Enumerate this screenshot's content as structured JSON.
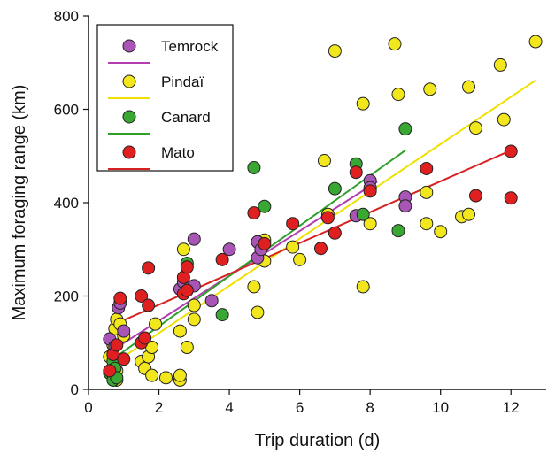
{
  "chart_data": {
    "type": "scatter",
    "xlabel": "Trip duration (d)",
    "ylabel": "Maximum foraging range (km)",
    "xlim": [
      0,
      13
    ],
    "ylim": [
      0,
      800
    ],
    "xticks": [
      0,
      2,
      4,
      6,
      8,
      10,
      12
    ],
    "yticks": [
      0,
      200,
      400,
      600,
      800
    ],
    "legend_position": "top-left",
    "grid": false,
    "series": [
      {
        "name": "Temrock",
        "color": "#a855b5",
        "line_color": "#b23cb0",
        "fit": [
          [
            0.6,
            80
          ],
          [
            8.2,
            445
          ]
        ],
        "points": [
          [
            0.6,
            108
          ],
          [
            0.75,
            92
          ],
          [
            0.85,
            175
          ],
          [
            0.9,
            185
          ],
          [
            1.0,
            125
          ],
          [
            0.7,
            40
          ],
          [
            2.6,
            215
          ],
          [
            2.7,
            230
          ],
          [
            3.0,
            322
          ],
          [
            3.0,
            222
          ],
          [
            3.5,
            190
          ],
          [
            4.0,
            300
          ],
          [
            4.8,
            316
          ],
          [
            4.8,
            282
          ],
          [
            4.9,
            300
          ],
          [
            7.6,
            372
          ],
          [
            8.0,
            447
          ],
          [
            8.0,
            432
          ],
          [
            9.0,
            412
          ],
          [
            9.0,
            393
          ]
        ]
      },
      {
        "name": "Pindaï",
        "color": "#f2e61c",
        "line_color": "#f0e000",
        "fit": [
          [
            0.8,
            60
          ],
          [
            12.7,
            662
          ]
        ],
        "points": [
          [
            0.6,
            70
          ],
          [
            0.7,
            95
          ],
          [
            0.75,
            130
          ],
          [
            0.8,
            150
          ],
          [
            0.9,
            140
          ],
          [
            1.0,
            115
          ],
          [
            0.8,
            40
          ],
          [
            0.8,
            20
          ],
          [
            1.5,
            60
          ],
          [
            1.6,
            45
          ],
          [
            1.7,
            70
          ],
          [
            1.8,
            30
          ],
          [
            1.8,
            90
          ],
          [
            1.9,
            140
          ],
          [
            2.2,
            25
          ],
          [
            2.6,
            20
          ],
          [
            2.6,
            30
          ],
          [
            2.6,
            125
          ],
          [
            2.7,
            300
          ],
          [
            2.7,
            220
          ],
          [
            2.8,
            90
          ],
          [
            3.0,
            150
          ],
          [
            3.0,
            180
          ],
          [
            4.7,
            220
          ],
          [
            4.8,
            165
          ],
          [
            5.0,
            320
          ],
          [
            5.0,
            275
          ],
          [
            5.8,
            305
          ],
          [
            6.0,
            278
          ],
          [
            6.7,
            490
          ],
          [
            6.8,
            375
          ],
          [
            7.0,
            725
          ],
          [
            7.8,
            612
          ],
          [
            7.8,
            220
          ],
          [
            8.0,
            355
          ],
          [
            8.0,
            430
          ],
          [
            8.7,
            740
          ],
          [
            8.8,
            632
          ],
          [
            9.6,
            355
          ],
          [
            9.7,
            643
          ],
          [
            10.0,
            338
          ],
          [
            10.6,
            370
          ],
          [
            10.8,
            375
          ],
          [
            10.8,
            648
          ],
          [
            11.0,
            560
          ],
          [
            11.7,
            695
          ],
          [
            11.8,
            578
          ],
          [
            12.7,
            745
          ],
          [
            9.6,
            422
          ]
        ]
      },
      {
        "name": "Canard",
        "color": "#38a832",
        "line_color": "#2ea02a",
        "fit": [
          [
            0.6,
            60
          ],
          [
            9.0,
            512
          ]
        ],
        "points": [
          [
            0.6,
            35
          ],
          [
            0.7,
            60
          ],
          [
            0.7,
            20
          ],
          [
            0.75,
            45
          ],
          [
            0.8,
            25
          ],
          [
            2.8,
            270
          ],
          [
            3.8,
            160
          ],
          [
            4.7,
            475
          ],
          [
            5.0,
            392
          ],
          [
            7.0,
            430
          ],
          [
            7.6,
            483
          ],
          [
            7.8,
            375
          ],
          [
            8.8,
            340
          ],
          [
            9.0,
            558
          ]
        ]
      },
      {
        "name": "Mato",
        "color": "#e02020",
        "line_color": "#d82222",
        "fit": [
          [
            0.6,
            135
          ],
          [
            12.0,
            512
          ]
        ],
        "points": [
          [
            0.6,
            40
          ],
          [
            0.7,
            75
          ],
          [
            0.8,
            95
          ],
          [
            0.9,
            195
          ],
          [
            1.0,
            65
          ],
          [
            1.5,
            200
          ],
          [
            1.5,
            100
          ],
          [
            1.6,
            110
          ],
          [
            1.7,
            260
          ],
          [
            1.7,
            180
          ],
          [
            2.7,
            205
          ],
          [
            2.7,
            240
          ],
          [
            2.8,
            262
          ],
          [
            2.8,
            212
          ],
          [
            3.8,
            278
          ],
          [
            4.7,
            378
          ],
          [
            5.0,
            312
          ],
          [
            5.8,
            355
          ],
          [
            6.6,
            302
          ],
          [
            6.8,
            368
          ],
          [
            7.0,
            335
          ],
          [
            7.6,
            465
          ],
          [
            8.0,
            425
          ],
          [
            9.6,
            473
          ],
          [
            11.0,
            415
          ],
          [
            12.0,
            510
          ],
          [
            12.0,
            410
          ]
        ]
      }
    ]
  }
}
